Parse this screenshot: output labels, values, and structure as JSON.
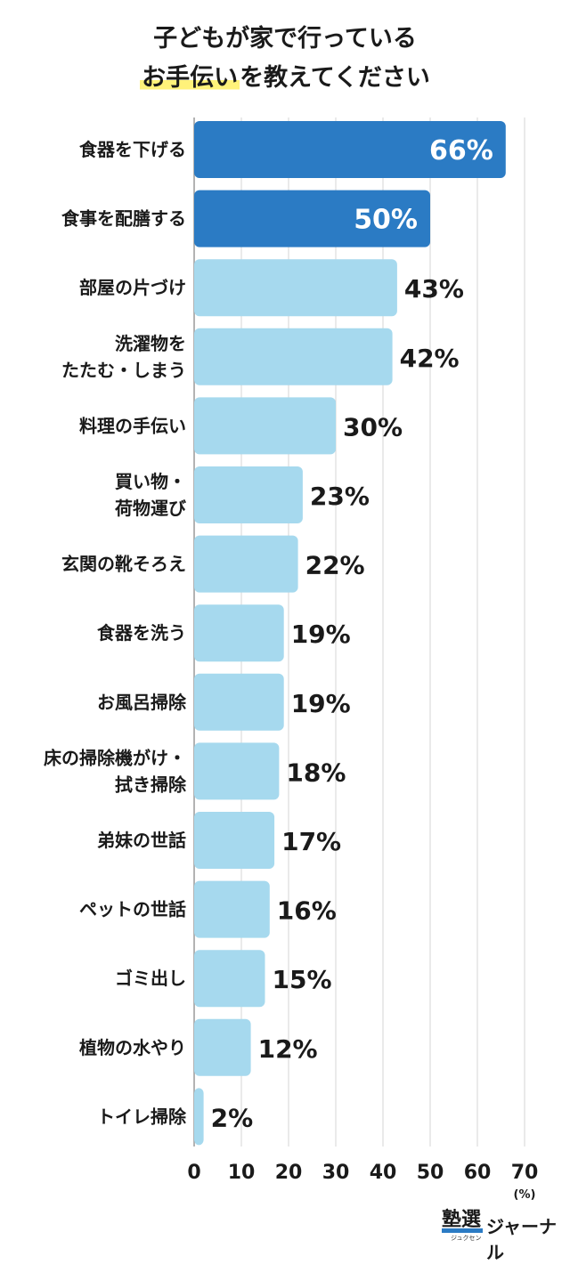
{
  "title": {
    "line1": "子どもが家で行っている",
    "line2_highlight": "お手伝い",
    "line2_rest": "を教えてください"
  },
  "brand": {
    "kanji": "塾選",
    "kana": "ジュクセン",
    "name": "ジャーナル"
  },
  "colors": {
    "highlight_bar": "#2b7bc4",
    "regular_bar": "#a6d9ee",
    "title_highlight": "#fff27a"
  },
  "chart_data": {
    "type": "bar",
    "orientation": "horizontal",
    "categories": [
      [
        "食器を下げる"
      ],
      [
        "食事を配膳する"
      ],
      [
        "部屋の片づけ"
      ],
      [
        "洗濯物を",
        "たたむ・しまう"
      ],
      [
        "料理の手伝い"
      ],
      [
        "買い物・",
        "荷物運び"
      ],
      [
        "玄関の靴そろえ"
      ],
      [
        "食器を洗う"
      ],
      [
        "お風呂掃除"
      ],
      [
        "床の掃除機がけ・",
        "拭き掃除"
      ],
      [
        "弟妹の世話"
      ],
      [
        "ペットの世話"
      ],
      [
        "ゴミ出し"
      ],
      [
        "植物の水やり"
      ],
      [
        "トイレ掃除"
      ]
    ],
    "values": [
      66,
      50,
      43,
      42,
      30,
      23,
      22,
      19,
      19,
      18,
      17,
      16,
      15,
      12,
      2
    ],
    "value_labels": [
      "66%",
      "50%",
      "43%",
      "42%",
      "30%",
      "23%",
      "22%",
      "19%",
      "19%",
      "18%",
      "17%",
      "16%",
      "15%",
      "12%",
      "2%"
    ],
    "highlighted": [
      0,
      1
    ],
    "xlim": [
      0,
      70
    ],
    "xticks": [
      "0",
      "10",
      "20",
      "30",
      "40",
      "50",
      "60",
      "70"
    ],
    "xunit": "(%)",
    "grid": true
  }
}
